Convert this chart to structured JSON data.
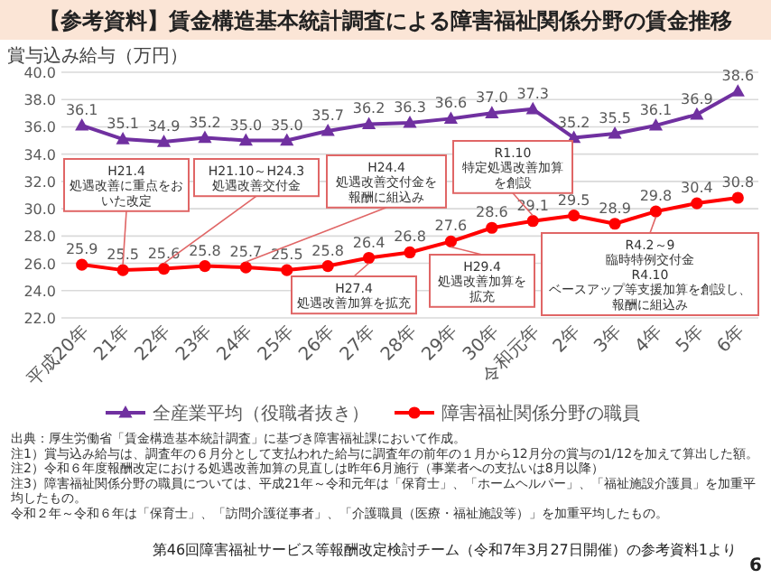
{
  "chart_data": {
    "type": "line",
    "title": "【参考資料】賃金構造基本統計調査による障害福祉関係分野の賃金推移",
    "ylabel": "賞与込み給与（万円）",
    "categories": [
      "平成20年",
      "21年",
      "22年",
      "23年",
      "24年",
      "25年",
      "26年",
      "27年",
      "28年",
      "29年",
      "30年",
      "令和元年",
      "2年",
      "3年",
      "4年",
      "5年",
      "6年"
    ],
    "series": [
      {
        "name": "全産業平均（役職者抜き）",
        "color": "#7030a0",
        "marker": "triangle",
        "values": [
          36.1,
          35.1,
          34.9,
          35.2,
          35.0,
          35.0,
          35.7,
          36.2,
          36.3,
          36.6,
          37.0,
          37.3,
          35.2,
          35.5,
          36.1,
          36.9,
          38.6
        ],
        "value_labels": [
          "36.1",
          "35.1",
          "34.9",
          "35.2",
          "35.0",
          "35.0",
          "35.7",
          "36.2",
          "36.3",
          "36.6",
          "37.0",
          "37.3",
          "35.2",
          "35.5",
          "36.1",
          "36.9",
          "38.6"
        ]
      },
      {
        "name": "障害福祉関係分野の職員",
        "color": "#ff0000",
        "marker": "circle",
        "values": [
          25.9,
          25.5,
          25.6,
          25.8,
          25.7,
          25.5,
          25.8,
          26.4,
          26.8,
          27.6,
          28.6,
          29.1,
          29.5,
          28.9,
          29.8,
          30.4,
          30.8
        ],
        "value_labels": [
          "25.9",
          "25.5",
          "25.6",
          "25.8",
          "25.7",
          "25.5",
          "25.8",
          "26.4",
          "26.8",
          "27.6",
          "28.6",
          "29.1",
          "29.5",
          "28.9",
          "29.8",
          "30.4",
          "30.8"
        ]
      }
    ],
    "ylim": [
      22,
      40
    ],
    "yticks": [
      {
        "value": 22,
        "label": "22.0"
      },
      {
        "value": 24,
        "label": "24.0"
      },
      {
        "value": 26,
        "label": "26.0"
      },
      {
        "value": 28,
        "label": "28.0"
      },
      {
        "value": 30,
        "label": "30.0"
      },
      {
        "value": 32,
        "label": "32.0"
      },
      {
        "value": 34,
        "label": "34.0"
      },
      {
        "value": 36,
        "label": "36.0"
      },
      {
        "value": 38,
        "label": "38.0"
      },
      {
        "value": 40,
        "label": "40.0"
      }
    ],
    "grid": "y",
    "legend": "bottom",
    "annotations": [
      {
        "text": "H21.4\n処遇改善に重点をおいた改定",
        "x": "21年",
        "y": 25.5
      },
      {
        "text": "H21.10～H24.3\n処遇改善交付金",
        "x": "22年",
        "y": 25.6
      },
      {
        "text": "H24.4\n処遇改善交付金を報酬に組込み",
        "x": "24年",
        "y": 25.7
      },
      {
        "text": "H27.4\n処遇改善加算を拡充",
        "x": "27年",
        "y": 26.4
      },
      {
        "text": "H29.4\n処遇改善加算を拡充",
        "x": "29年",
        "y": 27.6
      },
      {
        "text": "R1.10\n特定処遇改善加算を創設",
        "x": "令和元年",
        "y": 29.1
      },
      {
        "text": "R4.2～9\n臨時特例交付金\nR4.10\nベースアップ等支援加算を創設し、報酬に組込み",
        "x": "4年",
        "y": 29.8
      },
      "出典：厚生労働省「賃金構造基本統計調査」に基づき障害福祉課において作成。",
      "注1）賞与込み給与は、調査年の６月分として支払われた給与に調査年の前年の１月から12月分の賞与の1/12を加えて算出した額。",
      "注2）令和６年度報酬改定における処遇改善加算の見直しは昨年6月施行（事業者への支払いは8月以降）",
      "注3）障害福祉関係分野の職員については、平成21年～令和元年は「保育士」、「ホームヘルパー」、「福祉施設介護員」を加重平均したもの。",
      "令和２年～令和６年は「保育士」、「訪問介護従事者」、「介護職員（医療・福祉施設等）」を加重平均したもの。",
      "第46回障害福祉サービス等報酬改定検討チーム（令和7年3月27日開催）の参考資料1より",
      "6"
    ]
  }
}
